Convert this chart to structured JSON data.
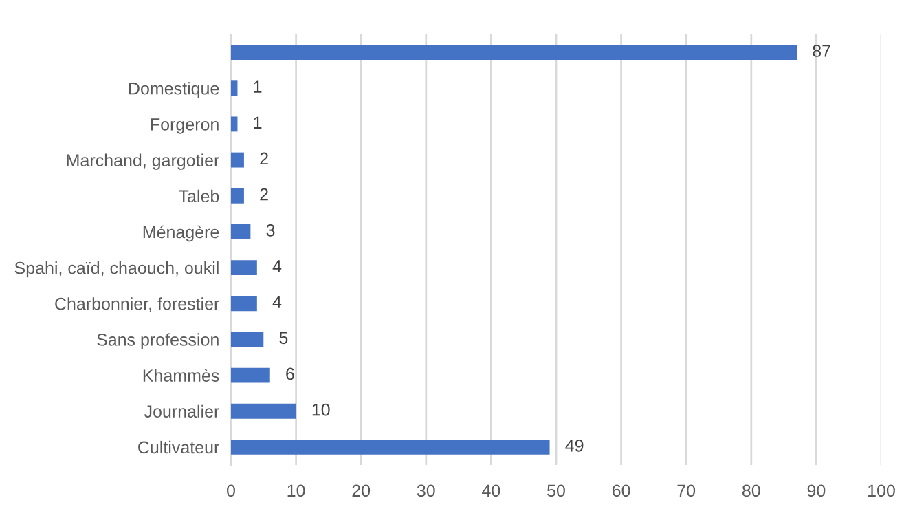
{
  "chart_data": {
    "type": "bar",
    "orientation": "horizontal",
    "categories": [
      null,
      "Domestique",
      "Forgeron",
      "Marchand, gargotier",
      "Taleb",
      "Ménagère",
      "Spahi, caïd, chaouch, oukil",
      "Charbonnier, forestier",
      "Sans profession",
      "Khammès",
      "Journalier",
      "Cultivateur"
    ],
    "values": [
      87,
      1,
      1,
      2,
      2,
      3,
      4,
      4,
      5,
      6,
      10,
      49
    ],
    "color": "#4472c4",
    "xlim": [
      0,
      100
    ],
    "xticks": [
      0,
      10,
      20,
      30,
      40,
      50,
      60,
      70,
      80,
      90,
      100
    ],
    "grid": "x",
    "data_labels": true,
    "legend": false
  }
}
